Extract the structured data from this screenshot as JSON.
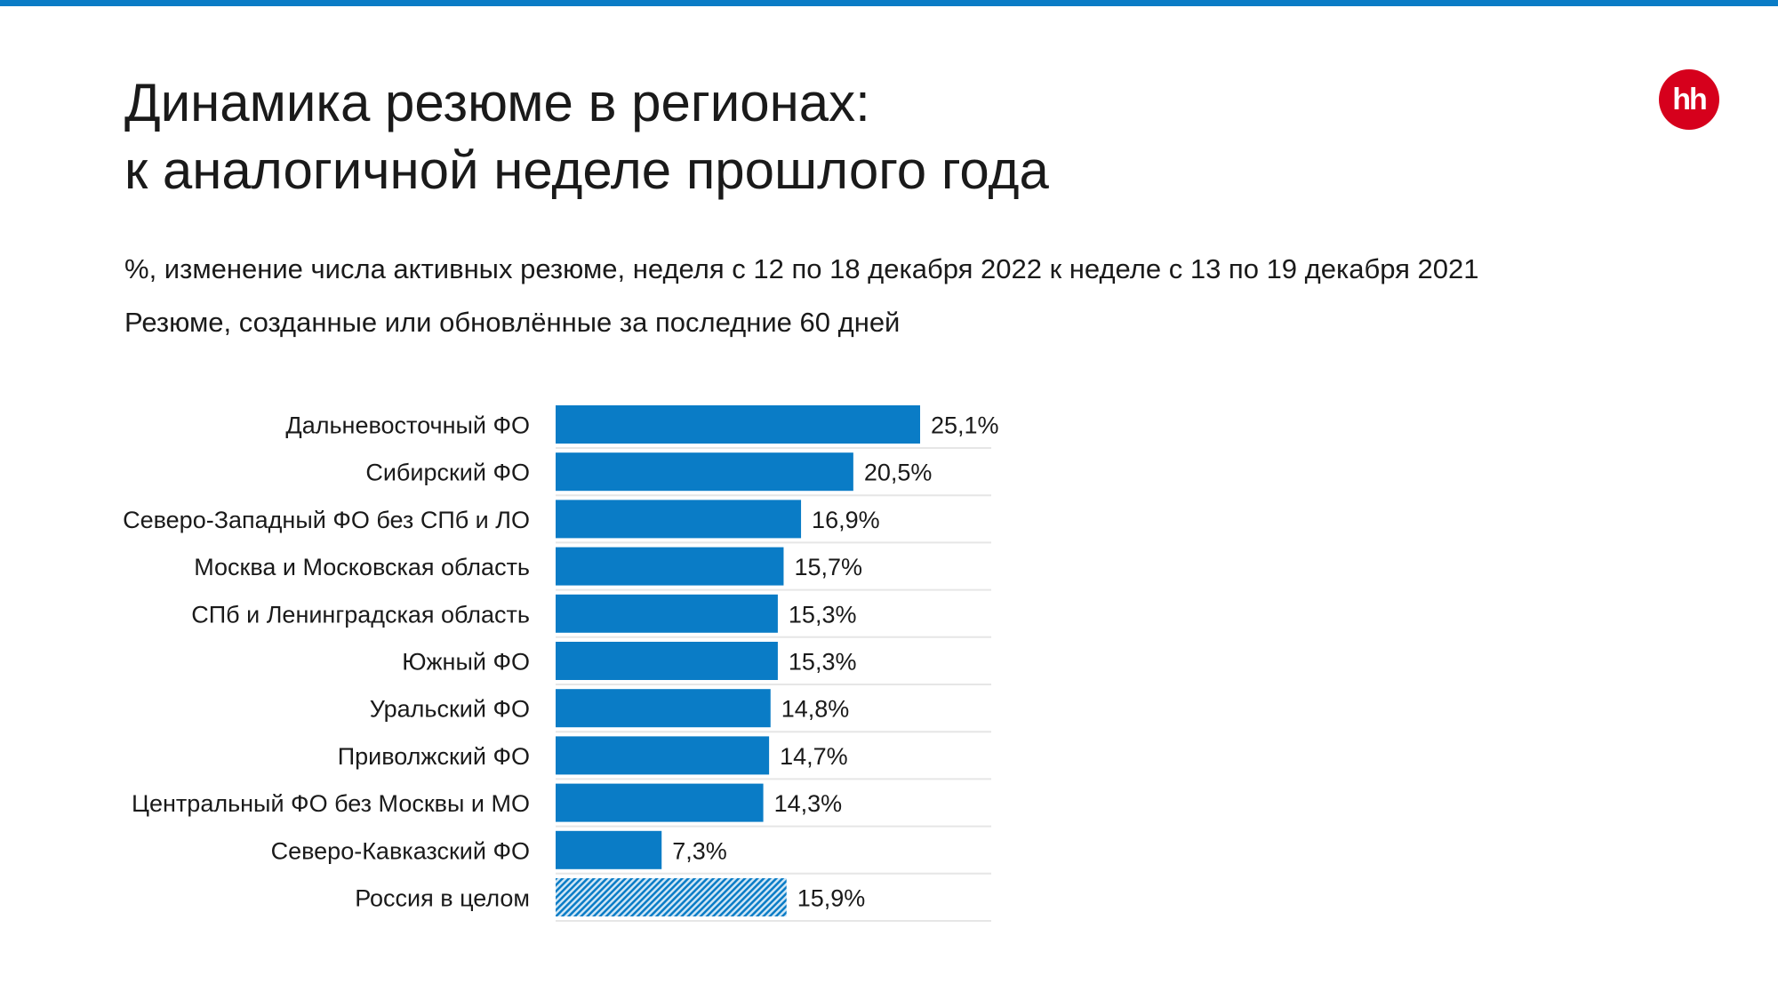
{
  "header": {
    "title_line1": "Динамика резюме в регионах:",
    "title_line2": "к аналогичной неделе прошлого года",
    "subtitle_line1": "%, изменение числа активных резюме, неделя с 12 по 18 декабря 2022 к неделе с 13 по 19 декабря 2021",
    "subtitle_line2": "Резюме, созданные или обновлённые за последние 60 дней",
    "logo_text": "hh"
  },
  "colors": {
    "accent": "#0a7cc6",
    "bar": "#0a7cc6",
    "logo": "#d6001c",
    "separator": "#e6e6e6"
  },
  "chart_data": {
    "type": "bar",
    "orientation": "horizontal",
    "categories": [
      "Дальневосточный ФО",
      "Сибирский ФО",
      "Северо-Западный ФО без СПб и ЛО",
      "Москва и Московская область",
      "СПб и Ленинградская область",
      "Южный ФО",
      "Уральский ФО",
      "Приволжский ФО",
      "Центральный ФО без Москвы и МО",
      "Северо-Кавказский ФО",
      "Россия в целом"
    ],
    "values": [
      25.1,
      20.5,
      16.9,
      15.7,
      15.3,
      15.3,
      14.8,
      14.7,
      14.3,
      7.3,
      15.9
    ],
    "value_labels": [
      "25,1%",
      "20,5%",
      "16,9%",
      "15,7%",
      "15,3%",
      "15,3%",
      "14,8%",
      "14,7%",
      "14,3%",
      "7,3%",
      "15,9%"
    ],
    "highlight": [
      false,
      false,
      false,
      false,
      false,
      false,
      false,
      false,
      false,
      false,
      true
    ],
    "xlim": [
      0,
      30
    ],
    "grid": false,
    "legend": "none"
  }
}
